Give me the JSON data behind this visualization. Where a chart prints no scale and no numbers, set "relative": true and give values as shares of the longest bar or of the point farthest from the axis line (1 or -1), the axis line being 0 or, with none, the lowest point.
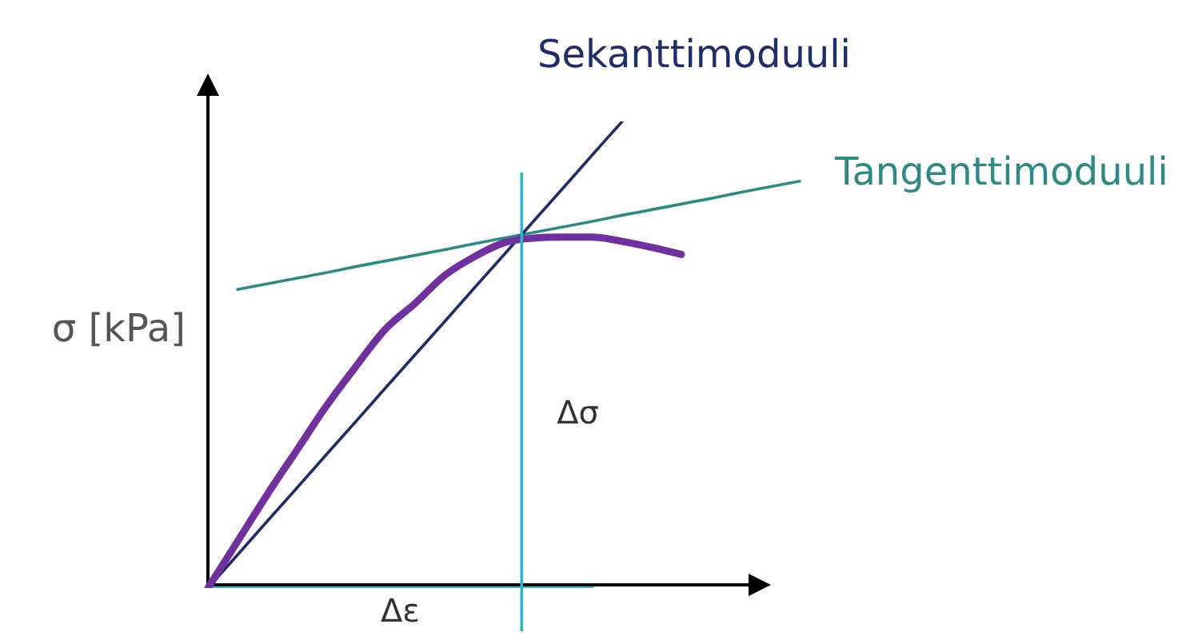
{
  "chart_data": {
    "type": "line",
    "relative": true,
    "ylabel": "σ [kPa]",
    "legend": false,
    "marker": "none",
    "line_style": "solid",
    "categories": [
      null,
      null,
      null,
      null,
      null,
      null,
      null,
      null,
      null,
      null,
      null,
      null,
      null,
      null,
      null,
      null,
      null,
      null,
      null,
      null,
      null
    ],
    "series": [
      {
        "color": "#7030a0",
        "values": [
          0,
          0.1,
          0.2,
          0.295,
          0.39,
          0.475,
          0.555,
          0.61,
          0.67,
          0.71,
          0.74,
          0.75,
          0.752,
          0.752,
          0.743,
          0.73,
          0.715,
          null,
          null,
          null,
          null
        ]
      },
      {
        "name": "Sekanttimoduuli",
        "color": "#1f2d6b",
        "values": [
          0,
          0.071,
          0.143,
          0.214,
          0.286,
          0.357,
          0.429,
          0.5,
          0.571,
          0.643,
          0.714,
          0.786,
          0.857,
          0.929,
          1,
          null,
          null,
          null,
          null,
          null,
          null
        ]
      },
      {
        "name": "Tangenttimoduuli",
        "color": "#2e8b84",
        "values": [
          null,
          0.64,
          0.652,
          0.664,
          0.676,
          0.689,
          0.701,
          0.713,
          0.725,
          0.738,
          0.75,
          0.762,
          0.774,
          0.786,
          0.799,
          0.811,
          0.823,
          0.835,
          0.848,
          0.86,
          0.872
        ]
      },
      {
        "color": "#29b6c6",
        "values": [
          0,
          0,
          0,
          0,
          0,
          0,
          0,
          0,
          0,
          0,
          0,
          0,
          0,
          0,
          null,
          null,
          null,
          null,
          null,
          null,
          null
        ]
      }
    ],
    "annotations": [
      "Δσ",
      "Δε"
    ]
  }
}
